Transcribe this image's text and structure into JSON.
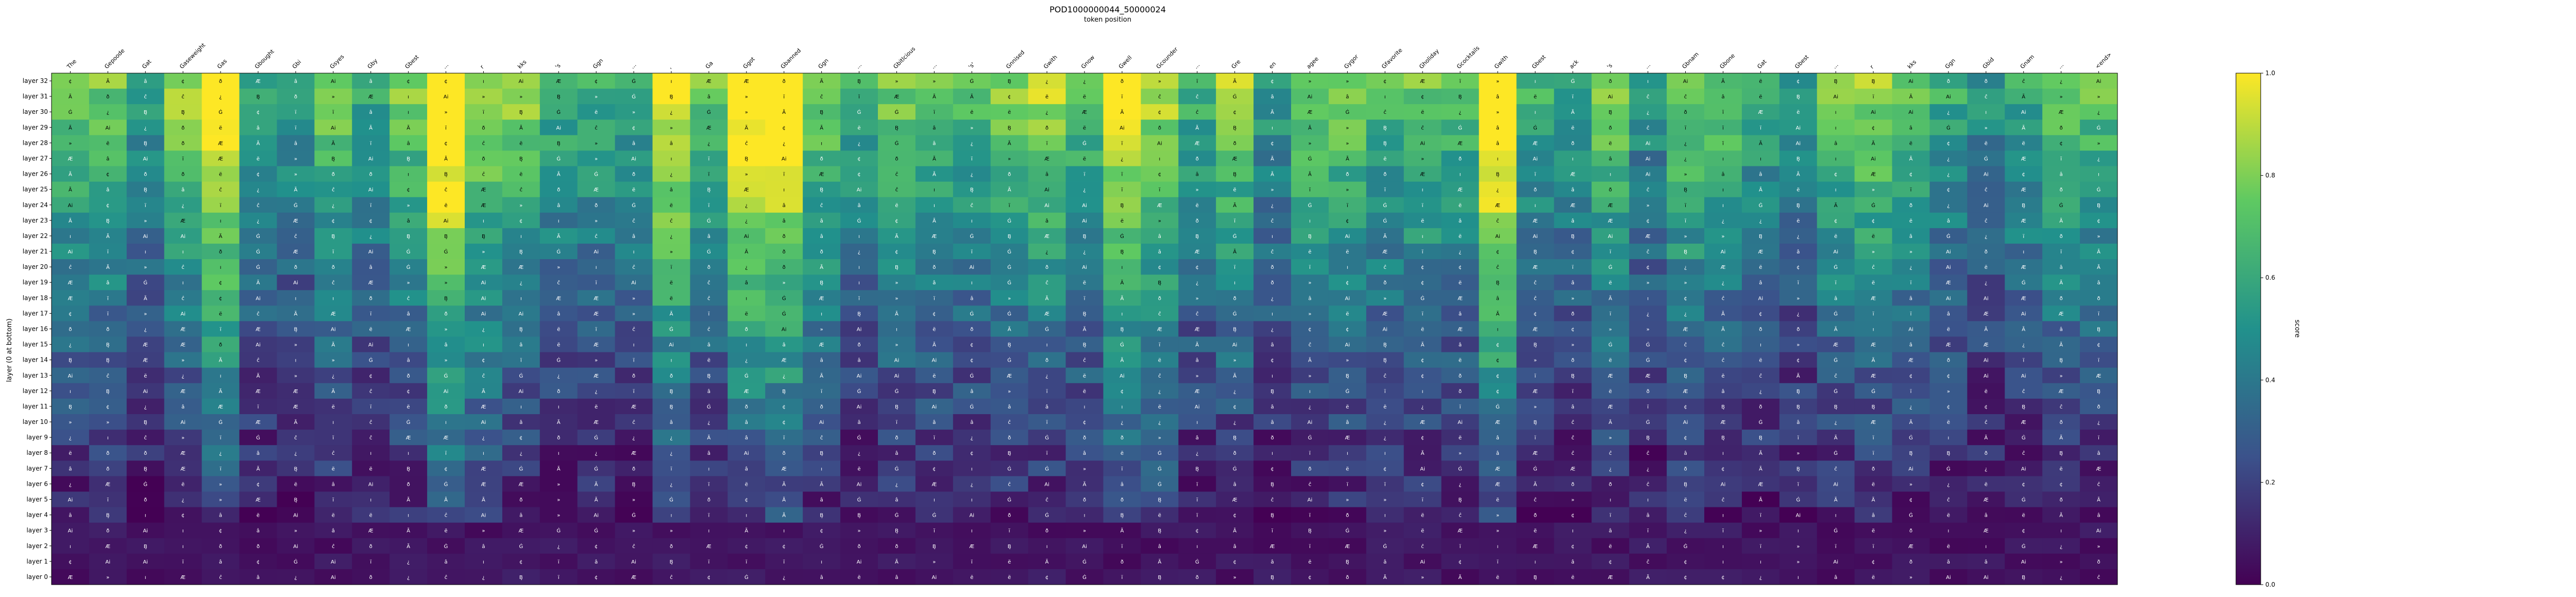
{
  "chart_data": {
    "type": "heatmap",
    "title": "POD1000000044_50000024",
    "subtitle": "token position",
    "ylabel": "layer (0 at bottom)",
    "colorbar_label": "score",
    "colorbar_ticks": [
      "0.0",
      "0.2",
      "0.4",
      "0.6",
      "0.8",
      "1.0"
    ],
    "colormap": [
      "#440154",
      "#3b528b",
      "#21918c",
      "#5ec962",
      "#fde725"
    ],
    "value_range": [
      0,
      1
    ],
    "x_tokens": [
      "The",
      "Gepoode",
      "Gat",
      "Gaseweight",
      "Gas",
      "Gbought",
      "Gbi",
      "Gsyes",
      "Gby",
      "Gbest",
      "...",
      "r",
      "kks",
      "'s",
      "Ggn",
      "...",
      ",",
      "Ga",
      "Ggot",
      "Gbanned",
      "Ggn",
      "...",
      "Gbitlcious",
      "...",
      "'s'",
      "Gnnised",
      "Gwith",
      "Gnow",
      "Gwell",
      "Gcounder",
      "...",
      "Gre",
      "en",
      "agee",
      "Gygor",
      "Gfavorite",
      "Gholiday",
      "Gcocktails",
      "Gwith",
      "Gbest",
      "ack",
      "'s",
      "...",
      "Gbnam",
      "Gbone",
      "Gat",
      "Gbest",
      "...",
      "r",
      "kks",
      "Ggn",
      "Gbid",
      "Gnam",
      "...",
      "<end>"
    ],
    "y_layers": [
      "layer 32",
      "layer 31",
      "layer 30",
      "layer 29",
      "layer 28",
      "layer 27",
      "layer 26",
      "layer 25",
      "layer 24",
      "layer 23",
      "layer 22",
      "layer 21",
      "layer 20",
      "layer 19",
      "layer 18",
      "layer 17",
      "layer 16",
      "layer 15",
      "layer 14",
      "layer 13",
      "layer 12",
      "layer 11",
      "layer 10",
      "layer 9",
      "layer 8",
      "layer 7",
      "layer 6",
      "layer 5",
      "layer 4",
      "layer 3",
      "layer 2",
      "layer 1",
      "layer 0"
    ],
    "cell_labels": [
      "Ai",
      "Ã",
      "B̧",
      "¢",
      "»",
      "â",
      "Ġ",
      "ï",
      "ı",
      "ë",
      "¿",
      "Æ",
      "ð",
      "ĉ"
    ]
  }
}
